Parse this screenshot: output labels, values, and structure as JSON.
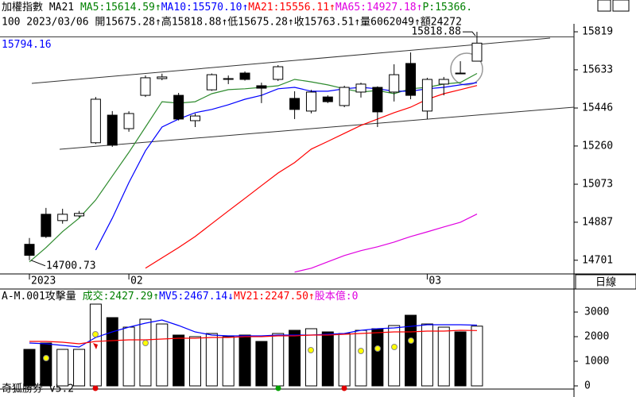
{
  "header": {
    "line1": [
      {
        "text": "加權指數 MA21 ",
        "color": "#000000"
      },
      {
        "text": "MA5:15614.59↑",
        "color": "#008000"
      },
      {
        "text": "MA10:15570.10↑",
        "color": "#0000ff"
      },
      {
        "text": "MA21:15556.11↑",
        "color": "#ff0000"
      },
      {
        "text": "MA65:14927.18↑",
        "color": "#e000e0"
      },
      {
        "text": "P:15366.",
        "color": "#008000"
      }
    ],
    "line2": "100 2023/03/06 開15675.28↑高15818.88↑低15675.28↑收15763.51↑量6062049↑額24272"
  },
  "period": "日線",
  "footer": "奇狐勝券 v5.2",
  "volume_header": [
    {
      "text": "A-M.001攻擊量 ",
      "color": "#000000"
    },
    {
      "text": "成交:2427.29↑",
      "color": "#008000"
    },
    {
      "text": "MV5:2467.14↓",
      "color": "#0000ff"
    },
    {
      "text": "MV21:2247.50↑",
      "color": "#ff0000"
    },
    {
      "text": "股本億:0",
      "color": "#e000e0"
    }
  ],
  "chart_data": [
    {
      "type": "candlestick",
      "categories": [
        "2023",
        null,
        null,
        null,
        null,
        null,
        "02",
        null,
        null,
        null,
        null,
        null,
        null,
        null,
        null,
        null,
        null,
        null,
        null,
        null,
        null,
        null,
        null,
        null,
        "03",
        null,
        null,
        null
      ],
      "open": [
        14779,
        14926,
        14895,
        14918,
        15276,
        15411,
        15345,
        15508,
        15590,
        15508,
        15384,
        15535,
        15586,
        15617,
        15555,
        15586,
        15493,
        15431,
        15500,
        15458,
        15524,
        15547,
        15524,
        15664,
        15431,
        15563,
        15617,
        15675.28
      ],
      "high": [
        14810,
        14957,
        14953,
        14942,
        15500,
        15431,
        15430,
        15605,
        15614,
        15520,
        15419,
        15615,
        15605,
        15625,
        15570,
        15656,
        15528,
        15535,
        15508,
        15555,
        15570,
        15552,
        15660,
        15718,
        15594,
        15598,
        15675,
        15818.88
      ],
      "low": [
        14701,
        14810,
        14880,
        14910,
        15270,
        15256,
        15330,
        15500,
        15582,
        15385,
        15353,
        15530,
        15563,
        15580,
        15470,
        15578,
        15392,
        15420,
        15470,
        15450,
        15497,
        15353,
        15478,
        15489,
        15392,
        15508,
        15614,
        15675.28
      ],
      "close": [
        14725,
        14817,
        14926,
        14930,
        15489,
        15264,
        15419,
        15594,
        15598,
        15392,
        15407,
        15609,
        15590,
        15586,
        15543,
        15648,
        15439,
        15524,
        15477,
        15547,
        15563,
        15427,
        15609,
        15508,
        15586,
        15586,
        15614,
        15763.51
      ],
      "up_color": "#ffffff",
      "down_color": "#000000",
      "series": [
        {
          "color": "#2e8b2e",
          "values": [
            14693,
            14763,
            14841,
            14907,
            14996,
            15113,
            15229,
            15353,
            15477,
            15470,
            15477,
            15516,
            15536,
            15540,
            15547,
            15555,
            15586,
            15574,
            15559,
            15540,
            15524,
            15532,
            15516,
            15540,
            15547,
            15563,
            15571,
            15615
          ]
        },
        {
          "color": "#0000ff",
          "values": [
            null,
            null,
            null,
            null,
            14751,
            14907,
            15081,
            15237,
            15353,
            15392,
            15423,
            15439,
            15462,
            15489,
            15508,
            15540,
            15547,
            15528,
            15528,
            15540,
            15547,
            15540,
            15528,
            15528,
            15540,
            15547,
            15559,
            15570
          ]
        },
        {
          "color": "#ff0000",
          "values": [
            null,
            null,
            null,
            null,
            null,
            null,
            null,
            14662,
            14713,
            14763,
            14817,
            14880,
            14942,
            15004,
            15066,
            15128,
            15179,
            15245,
            15283,
            15322,
            15361,
            15392,
            15423,
            15450,
            15489,
            15516,
            15536,
            15556
          ]
        },
        {
          "color": "#e000e0",
          "values": [
            null,
            null,
            null,
            null,
            null,
            null,
            null,
            null,
            null,
            null,
            null,
            null,
            null,
            null,
            null,
            null,
            14643,
            14662,
            14693,
            14724,
            14748,
            14767,
            14790,
            14817,
            14840,
            14864,
            14887,
            14927
          ]
        }
      ],
      "ref_line": 15794.16,
      "ref_color": "#0000ff",
      "high_label": 15818.88,
      "low_label": 14700.73,
      "ylim": [
        14634,
        15858
      ],
      "yticks": [
        14701,
        14887,
        15073,
        15260,
        15446,
        15633,
        15819
      ]
    },
    {
      "type": "bar",
      "values": [
        1484,
        1742,
        1484,
        1484,
        3323,
        2774,
        2387,
        2710,
        2516,
        2065,
        2000,
        2129,
        2000,
        2065,
        1806,
        2129,
        2258,
        2323,
        2194,
        2129,
        2258,
        2323,
        2452,
        2871,
        2516,
        2387,
        2194,
        2427.29
      ],
      "series": [
        {
          "color": "#0000ff",
          "values": [
            1742,
            1710,
            1645,
            1581,
            1968,
            2194,
            2387,
            2549,
            2678,
            2452,
            2194,
            2065,
            2032,
            2032,
            2032,
            2065,
            2065,
            2065,
            2097,
            2129,
            2258,
            2323,
            2355,
            2420,
            2484,
            2484,
            2484,
            2467.14
          ]
        },
        {
          "color": "#ff0000",
          "values": [
            1806,
            1806,
            1774,
            1710,
            1806,
            1839,
            1871,
            1871,
            1903,
            1936,
            1936,
            1968,
            1968,
            2000,
            2000,
            2032,
            2032,
            2065,
            2065,
            2097,
            2129,
            2161,
            2194,
            2194,
            2226,
            2226,
            2258,
            2247.5
          ]
        }
      ],
      "ylim": [
        0,
        3420
      ],
      "yticks": [
        0,
        1000,
        2000,
        3000
      ]
    }
  ]
}
